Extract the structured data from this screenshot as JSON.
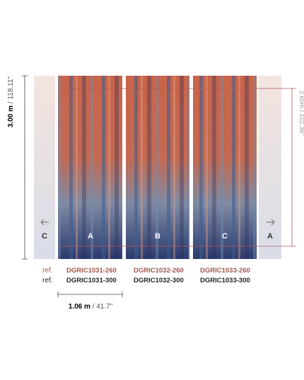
{
  "dimensions": {
    "height_metric": "3.00 m",
    "height_imperial": "/ 118.11\"",
    "height_alt": "2.60m / 102.36\"",
    "width_metric": "1.06 m",
    "width_imperial": "/ 41.7\""
  },
  "panels": [
    {
      "label": "C"
    },
    {
      "label": "A"
    },
    {
      "label": "B"
    },
    {
      "label": "C"
    },
    {
      "label": "A"
    }
  ],
  "references": {
    "labels": [
      "ref.",
      "ref."
    ],
    "columns": [
      {
        "ref_260": "DGRIC1031-260",
        "ref_300": "DGRIC1031-300"
      },
      {
        "ref_260": "DGRIC1032-260",
        "ref_300": "DGRIC1032-300"
      },
      {
        "ref_260": "DGRIC1033-260",
        "ref_300": "DGRIC1033-300"
      }
    ]
  }
}
